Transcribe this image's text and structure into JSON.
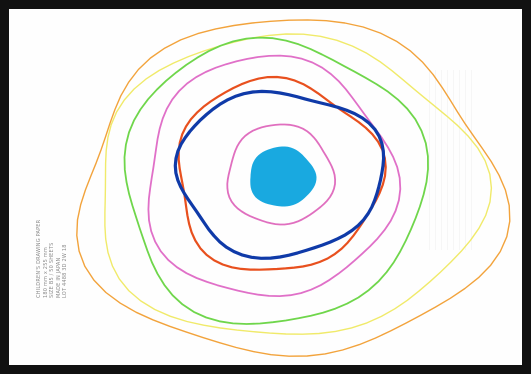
{
  "image": {
    "description_type": "scanned drawing of concentric rings",
    "rings": [
      {
        "name": "orange-outer-ring",
        "color": "#f2a33c"
      },
      {
        "name": "yellow-ring",
        "color": "#f0ea6a"
      },
      {
        "name": "green-ring",
        "color": "#6fd64b"
      },
      {
        "name": "pink-outer-ring",
        "color": "#e070c8"
      },
      {
        "name": "red-orange-ring",
        "color": "#e8501e"
      },
      {
        "name": "blue-ring",
        "color": "#0f3aa8"
      },
      {
        "name": "pink-inner-ring",
        "color": "#e06fbf"
      }
    ],
    "center_dot_color": "#19a9e0",
    "frame_color": "#111111"
  },
  "faint_lines": [
    "CHILDREN'S DRAWING PAPER",
    "180 mm x 255 mm",
    "SIZE B5 / 50 SHEETS",
    "MADE IN JAPAN",
    "LOT 4488 3D 2W 18"
  ]
}
